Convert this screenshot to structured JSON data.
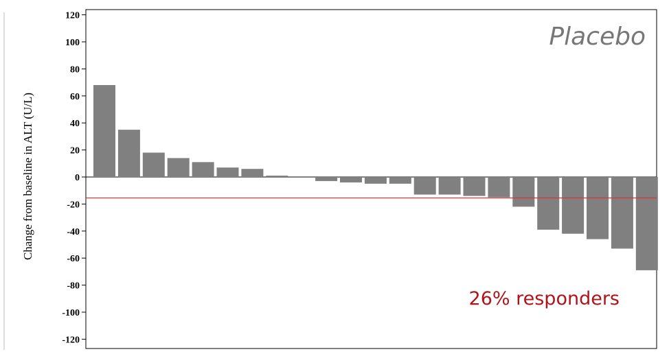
{
  "chart_data": {
    "type": "bar",
    "title": "Placebo",
    "ylabel": "Change from baseline in ALT (U/L)",
    "ylim": [
      -120,
      120
    ],
    "yticks": [
      120,
      100,
      80,
      60,
      40,
      20,
      0,
      -20,
      -40,
      -60,
      -80,
      -100,
      -120
    ],
    "values": [
      68,
      35,
      18,
      14,
      11,
      7,
      6,
      1,
      0,
      -3,
      -4,
      -5,
      -5,
      -13,
      -13,
      -14,
      -15,
      -22,
      -39,
      -42,
      -46,
      -53,
      -69
    ],
    "reference_line": {
      "value": -15.5,
      "color": "#e03030"
    },
    "annotation": "26% responders",
    "bar_color": "#808080",
    "annotation_color": "#b0141a",
    "title_color": "#777777",
    "grid": false
  }
}
